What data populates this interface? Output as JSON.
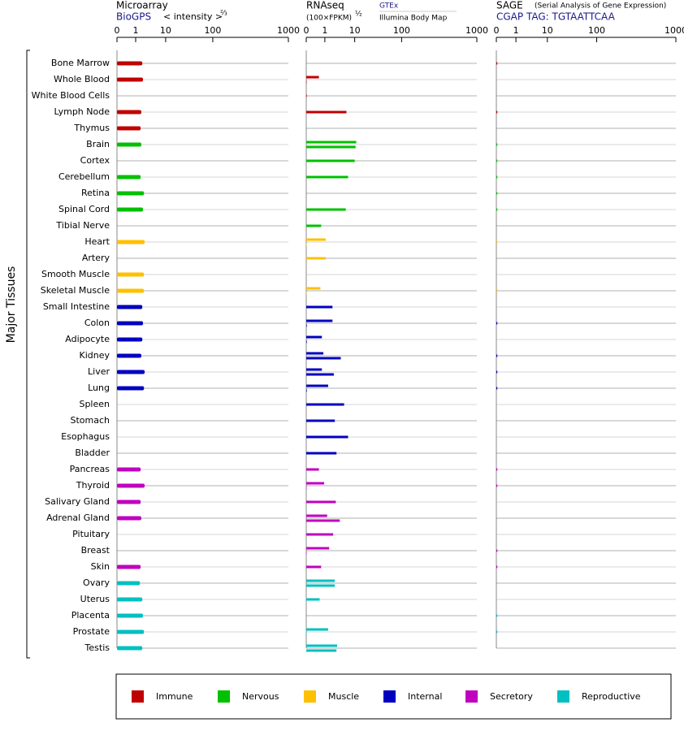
{
  "chart_data": {
    "type": "bar",
    "y_label": "Major Tissues",
    "groups": [
      {
        "name": "Immune",
        "color": "#c00000",
        "categories": [
          "Bone Marrow",
          "Whole Blood",
          "White Blood Cells",
          "Lymph Node",
          "Thymus"
        ]
      },
      {
        "name": "Nervous",
        "color": "#00c000",
        "categories": [
          "Brain",
          "Cortex",
          "Cerebellum",
          "Retina",
          "Spinal Cord",
          "Tibial Nerve"
        ]
      },
      {
        "name": "Muscle",
        "color": "#ffc000",
        "categories": [
          "Heart",
          "Artery",
          "Smooth Muscle",
          "Skeletal Muscle"
        ]
      },
      {
        "name": "Internal",
        "color": "#0000c0",
        "categories": [
          "Small Intestine",
          "Colon",
          "Adipocyte",
          "Kidney",
          "Liver",
          "Lung",
          "Spleen",
          "Stomach",
          "Esophagus",
          "Bladder"
        ]
      },
      {
        "name": "Secretory",
        "color": "#c000c0",
        "categories": [
          "Pancreas",
          "Thyroid",
          "Salivary Gland",
          "Adrenal Gland",
          "Pituitary",
          "Breast",
          "Skin"
        ]
      },
      {
        "name": "Reproductive",
        "color": "#00c0c0",
        "categories": [
          "Ovary",
          "Uterus",
          "Placenta",
          "Prostate",
          "Testis"
        ]
      }
    ],
    "panels": [
      {
        "title": "Microarray",
        "source": "BioGPS",
        "scale_label": "< intensity >",
        "scale_exponent": "⅔",
        "xlim": [
          0,
          1000
        ],
        "xticks": [
          0,
          1,
          10,
          100,
          1000
        ],
        "values": [
          3,
          3.2,
          null,
          2.7,
          2.5,
          2.7,
          null,
          2.5,
          3.5,
          3.2,
          null,
          3.7,
          null,
          3.5,
          3.5,
          3,
          3.2,
          3,
          2.7,
          3.7,
          3.5,
          null,
          null,
          null,
          null,
          2.5,
          3.7,
          2.5,
          2.7,
          null,
          null,
          2.5,
          2.3,
          3,
          3.2,
          3.5,
          3
        ]
      },
      {
        "title": "RNAseq",
        "scale_label": "(100×FPKM)",
        "scale_exponent": "½",
        "source": "GTEx",
        "source_detail": "Illumina Body Map",
        "xlim": [
          0,
          1000
        ],
        "xticks": [
          0,
          1,
          10,
          100,
          1000
        ],
        "values": [
          [],
          [
            0.68,
            0.02
          ],
          [
            0.03
          ],
          [
            7.5
          ],
          [],
          [
            13,
            11.7
          ],
          [
            10
          ],
          [
            8
          ],
          [],
          [
            7.3
          ],
          [
            0.8
          ],
          [
            1.26,
            0.02
          ],
          [
            1.26
          ],
          [],
          [
            0.76,
            0.02
          ],
          [
            3.3
          ],
          [
            3.3,
            0.03
          ],
          [
            0.84,
            0.03
          ],
          [
            0.92,
            5.8
          ],
          [
            0.84,
            3.7
          ],
          [
            2,
            0.03
          ],
          [
            6.8
          ],
          [
            4
          ],
          [
            8
          ],
          [
            4.5
          ],
          [
            0.68
          ],
          [
            0.96,
            0.02
          ],
          [
            4.3
          ],
          [
            1.7,
            5.5
          ],
          [
            3.5
          ],
          [
            2.3,
            0.02
          ],
          [
            0.8
          ],
          [
            4,
            4
          ],
          [
            0.72
          ],
          [],
          [
            2,
            0.02
          ],
          [
            4.7,
            4.5
          ]
        ]
      },
      {
        "title": "SAGE",
        "subtitle": "(Serial Analysis of Gene Expression)",
        "source": "CGAP TAG: TGTAATTCAA",
        "xlim": [
          0,
          1000
        ],
        "xticks": [
          0,
          1,
          10,
          100,
          1000
        ],
        "values": [
          0.05,
          null,
          null,
          0.05,
          null,
          0.05,
          0.05,
          0.05,
          0.05,
          0.05,
          null,
          0.05,
          null,
          null,
          0.05,
          null,
          0.05,
          null,
          0.05,
          0.05,
          0.05,
          null,
          null,
          null,
          null,
          0.05,
          0.05,
          null,
          null,
          null,
          0.05,
          0.05,
          null,
          null,
          0.05,
          0.05,
          null
        ]
      }
    ]
  }
}
